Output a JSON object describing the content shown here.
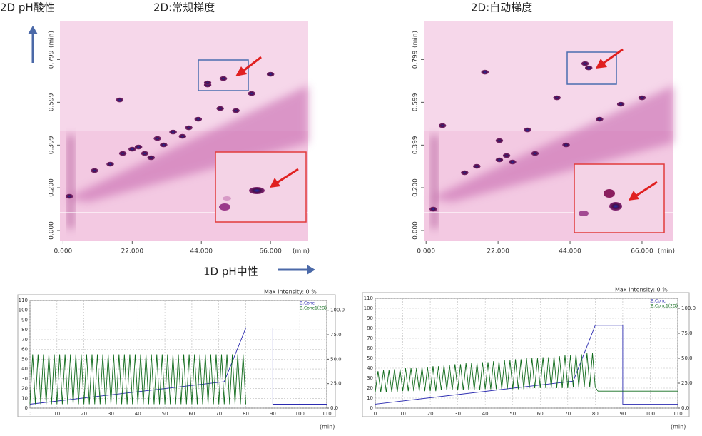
{
  "labels": {
    "y_direction": "2D pH酸性",
    "x_direction": "1D pH中性"
  },
  "chart_data": [
    {
      "type": "scatter",
      "title": "2D:常规梯度",
      "xlabel": "(min)",
      "ylabel": "(min)",
      "xlim": [
        -1,
        78
      ],
      "ylim": [
        -0.05,
        0.977
      ],
      "xticks": [
        {
          "value": 0,
          "label": "0.000"
        },
        {
          "value": 22,
          "label": "22.000"
        },
        {
          "value": 44,
          "label": "44.000"
        },
        {
          "value": 66,
          "label": "66.000"
        }
      ],
      "yticks": [
        {
          "value": 0,
          "label": "0.000"
        },
        {
          "value": 0.2,
          "label": "0.200"
        },
        0.399,
        0.599,
        0.799
      ],
      "color": "#5a1150",
      "x": [
        2,
        10,
        15,
        19,
        22,
        24,
        26,
        28,
        30,
        32,
        35,
        38,
        40,
        43,
        46,
        50,
        55,
        18,
        46,
        51,
        60,
        66
      ],
      "values": [
        0.16,
        0.28,
        0.31,
        0.36,
        0.38,
        0.39,
        0.36,
        0.34,
        0.43,
        0.4,
        0.46,
        0.44,
        0.48,
        0.52,
        0.68,
        0.57,
        0.56,
        0.61,
        0.69,
        0.71,
        0.64,
        0.73
      ]
    },
    {
      "type": "scatter",
      "title": "2D:自动梯度",
      "xlabel": "(min)",
      "ylabel": "(min)",
      "xlim": [
        -0.7,
        75.6
      ],
      "ylim": [
        -0.05,
        0.977
      ],
      "xticks": [
        {
          "value": 0,
          "label": "0.000"
        },
        {
          "value": 22,
          "label": "22.000"
        },
        {
          "value": 44,
          "label": "44.000"
        },
        {
          "value": 66,
          "label": "66.000"
        }
      ],
      "yticks": [
        {
          "value": 0,
          "label": "0.000"
        },
        {
          "value": 0.2,
          "label": "0.200"
        },
        0.399,
        0.599,
        0.799
      ],
      "color": "#5a1150",
      "x": [
        2.2,
        11.8,
        15.5,
        22.4,
        24.6,
        26.4,
        33.3,
        18,
        53,
        49.7,
        48.6,
        42.8,
        40,
        59.5,
        31,
        22.4,
        5,
        66
      ],
      "values": [
        0.1,
        0.27,
        0.3,
        0.33,
        0.35,
        0.32,
        0.36,
        0.74,
        0.52,
        0.76,
        0.78,
        0.4,
        0.62,
        0.59,
        0.47,
        0.42,
        0.49,
        0.62
      ]
    },
    {
      "type": "line",
      "title": "Max Intensity: 0 %",
      "xlabel": "(min)",
      "xlim": [
        0,
        110
      ],
      "ylim": [
        0,
        110
      ],
      "y2lim": [
        0,
        110
      ],
      "xticks": [
        0,
        10,
        20,
        30,
        40,
        50,
        60,
        70,
        80,
        90,
        100,
        110
      ],
      "yticks": [
        0,
        10,
        20,
        30,
        40,
        50,
        60,
        70,
        80,
        90,
        100,
        110
      ],
      "y2ticks": [
        {
          "value": 0,
          "label": "0.0"
        },
        {
          "value": 25,
          "label": "25.0"
        },
        {
          "value": 50,
          "label": "50.0"
        },
        {
          "value": 75,
          "label": "75.0"
        },
        {
          "value": 100,
          "label": "100.0"
        }
      ],
      "grid": true,
      "series": [
        {
          "name": "B.Conc",
          "color": "#2b2bb0",
          "x": [
            0,
            72,
            80,
            90,
            90,
            110
          ],
          "values": [
            4,
            27,
            82,
            82,
            4,
            4
          ]
        },
        {
          "name": "B.Conc1(2D)",
          "color": "#0f6a1a",
          "x": [
            0,
            1,
            2,
            3,
            4,
            5,
            6,
            7,
            8,
            9,
            10,
            11,
            12,
            13,
            14,
            15,
            16,
            17,
            18,
            19,
            20,
            21,
            22,
            23,
            24,
            25,
            26,
            27,
            28,
            29,
            30,
            31,
            32,
            33,
            34,
            35,
            36,
            37,
            38,
            39,
            40,
            41,
            42,
            43,
            44,
            45,
            46,
            47,
            48,
            49,
            50,
            51,
            52,
            53,
            54,
            55,
            56,
            57,
            58,
            59,
            60,
            61,
            62,
            63,
            64,
            65,
            66,
            67,
            68,
            69,
            70,
            71,
            72,
            73,
            74,
            75,
            76,
            77,
            78,
            79,
            80
          ],
          "values": [
            4,
            55,
            4,
            55,
            4,
            55,
            4,
            55,
            4,
            55,
            4,
            55,
            4,
            55,
            4,
            55,
            4,
            55,
            4,
            55,
            4,
            55,
            4,
            55,
            4,
            55,
            4,
            55,
            4,
            55,
            4,
            55,
            4,
            55,
            4,
            55,
            4,
            55,
            4,
            55,
            4,
            55,
            4,
            55,
            4,
            55,
            4,
            55,
            4,
            55,
            4,
            55,
            4,
            55,
            4,
            55,
            4,
            55,
            4,
            55,
            4,
            55,
            4,
            55,
            4,
            55,
            4,
            55,
            4,
            55,
            4,
            55,
            4,
            55,
            4,
            55,
            4,
            55,
            4,
            55,
            4
          ]
        }
      ]
    },
    {
      "type": "line",
      "title": "Max Intensity: 0 %",
      "xlabel": "(min)",
      "xlim": [
        0,
        110
      ],
      "ylim": [
        0,
        110
      ],
      "y2lim": [
        0,
        110
      ],
      "xticks": [
        0,
        10,
        20,
        30,
        40,
        50,
        60,
        70,
        80,
        90,
        100,
        110
      ],
      "yticks": [
        0,
        10,
        20,
        30,
        40,
        50,
        60,
        70,
        80,
        90,
        100,
        110
      ],
      "y2ticks": [
        {
          "value": 0,
          "label": "0.0"
        },
        {
          "value": 25,
          "label": "25.0"
        },
        {
          "value": 50,
          "label": "50.0"
        },
        {
          "value": 75,
          "label": "75.0"
        },
        {
          "value": 100,
          "label": "100.0"
        }
      ],
      "grid": true,
      "series": [
        {
          "name": "B.Conc",
          "color": "#2b2bb0",
          "x": [
            0,
            72,
            80,
            90,
            90,
            110
          ],
          "values": [
            4,
            27,
            83,
            83,
            4,
            4
          ]
        },
        {
          "name": "B.Conc1(2D)",
          "color": "#0f6a1a",
          "x": [
            0,
            1,
            2,
            3,
            4,
            5,
            6,
            7,
            8,
            9,
            10,
            11,
            12,
            13,
            14,
            15,
            16,
            17,
            18,
            19,
            20,
            21,
            22,
            23,
            24,
            25,
            26,
            27,
            28,
            29,
            30,
            31,
            32,
            33,
            34,
            35,
            36,
            37,
            38,
            39,
            40,
            41,
            42,
            43,
            44,
            45,
            46,
            47,
            48,
            49,
            50,
            51,
            52,
            53,
            54,
            55,
            56,
            57,
            58,
            59,
            60,
            61,
            62,
            63,
            64,
            65,
            66,
            67,
            68,
            69,
            70,
            71,
            72,
            73,
            74,
            75,
            76,
            77,
            78,
            79,
            80,
            81,
            110
          ],
          "values": [
            16,
            37,
            16,
            38,
            16,
            38,
            16,
            39,
            16,
            39,
            17,
            40,
            17,
            40,
            17,
            40,
            17,
            41,
            17,
            41,
            17,
            42,
            17,
            42,
            18,
            43,
            18,
            43,
            18,
            44,
            18,
            44,
            18,
            45,
            18,
            45,
            18,
            45,
            18,
            46,
            19,
            46,
            19,
            47,
            19,
            47,
            19,
            48,
            19,
            48,
            19,
            49,
            19,
            49,
            19,
            50,
            20,
            50,
            20,
            50,
            20,
            51,
            20,
            51,
            20,
            52,
            20,
            52,
            20,
            53,
            20,
            53,
            21,
            54,
            21,
            54,
            21,
            55,
            21,
            55,
            21,
            17,
            17
          ]
        }
      ]
    }
  ]
}
